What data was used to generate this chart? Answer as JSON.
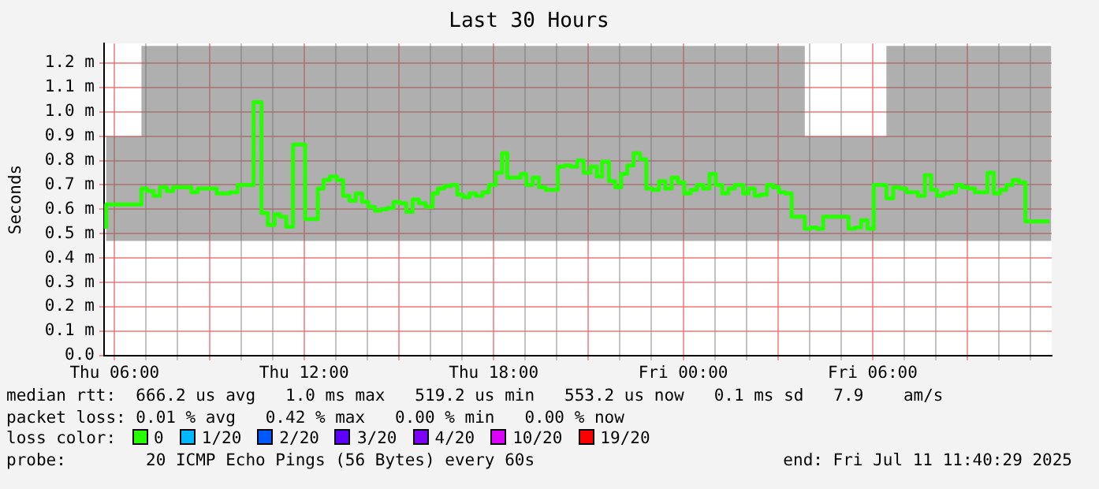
{
  "chart_data": {
    "type": "step",
    "title": "Last 30 Hours",
    "ylabel": "Seconds",
    "legend_title": "loss color:",
    "legend": "bottom",
    "grid": true,
    "marker": "none",
    "line_style": "solid",
    "x": [
      "2025-07-10T05:44",
      "2025-07-10T06:51",
      "2025-07-10T07:01",
      "2025-07-10T07:14",
      "2025-07-10T07:26",
      "2025-07-10T07:39",
      "2025-07-10T07:51",
      "2025-07-10T08:26",
      "2025-07-10T08:38",
      "2025-07-10T09:14",
      "2025-07-10T09:39",
      "2025-07-10T09:54",
      "2025-07-10T10:24",
      "2025-07-10T10:39",
      "2025-07-10T10:51",
      "2025-07-10T11:04",
      "2025-07-10T11:14",
      "2025-07-10T11:26",
      "2025-07-10T11:39",
      "2025-07-10T12:02",
      "2025-07-10T12:26",
      "2025-07-10T12:37",
      "2025-07-10T12:49",
      "2025-07-10T13:02",
      "2025-07-10T13:14",
      "2025-07-10T13:26",
      "2025-07-10T13:38",
      "2025-07-10T13:50",
      "2025-07-10T14:02",
      "2025-07-10T14:14",
      "2025-07-10T14:26",
      "2025-07-10T14:38",
      "2025-07-10T14:50",
      "2025-07-10T15:02",
      "2025-07-10T15:14",
      "2025-07-10T15:26",
      "2025-07-10T15:38",
      "2025-07-10T15:51",
      "2025-07-10T16:04",
      "2025-07-10T16:14",
      "2025-07-10T16:26",
      "2025-07-10T16:39",
      "2025-07-10T16:51",
      "2025-07-10T17:02",
      "2025-07-10T17:14",
      "2025-07-10T17:26",
      "2025-07-10T17:39",
      "2025-07-10T17:51",
      "2025-07-10T18:04",
      "2025-07-10T18:16",
      "2025-07-10T18:26",
      "2025-07-10T18:51",
      "2025-07-10T19:02",
      "2025-07-10T19:14",
      "2025-07-10T19:26",
      "2025-07-10T19:39",
      "2025-07-10T20:02",
      "2025-07-10T20:14",
      "2025-07-10T20:26",
      "2025-07-10T20:39",
      "2025-07-10T20:51",
      "2025-07-10T21:04",
      "2025-07-10T21:16",
      "2025-07-10T21:26",
      "2025-07-10T21:39",
      "2025-07-10T21:51",
      "2025-07-10T22:02",
      "2025-07-10T22:14",
      "2025-07-10T22:26",
      "2025-07-10T22:38",
      "2025-07-10T22:50",
      "2025-07-10T23:02",
      "2025-07-10T23:14",
      "2025-07-10T23:26",
      "2025-07-10T23:38",
      "2025-07-10T23:50",
      "2025-07-11T00:02",
      "2025-07-11T00:14",
      "2025-07-11T00:26",
      "2025-07-11T00:38",
      "2025-07-11T00:50",
      "2025-07-11T01:02",
      "2025-07-11T01:14",
      "2025-07-11T01:26",
      "2025-07-11T01:38",
      "2025-07-11T01:54",
      "2025-07-11T02:04",
      "2025-07-11T02:16",
      "2025-07-11T02:26",
      "2025-07-11T02:39",
      "2025-07-11T02:51",
      "2025-07-11T03:02",
      "2025-07-11T03:14",
      "2025-07-11T03:26",
      "2025-07-11T03:51",
      "2025-07-11T04:02",
      "2025-07-11T04:14",
      "2025-07-11T04:26",
      "2025-07-11T05:14",
      "2025-07-11T05:26",
      "2025-07-11T05:38",
      "2025-07-11T05:50",
      "2025-07-11T06:02",
      "2025-07-11T06:26",
      "2025-07-11T06:39",
      "2025-07-11T06:51",
      "2025-07-11T07:04",
      "2025-07-11T07:26",
      "2025-07-11T07:39",
      "2025-07-11T07:51",
      "2025-07-11T08:02",
      "2025-07-11T08:14",
      "2025-07-11T08:26",
      "2025-07-11T08:38",
      "2025-07-11T08:50",
      "2025-07-11T09:02",
      "2025-07-11T09:14",
      "2025-07-11T09:38",
      "2025-07-11T09:50",
      "2025-07-11T10:02",
      "2025-07-11T10:14",
      "2025-07-11T10:26",
      "2025-07-11T10:38",
      "2025-07-11T10:50",
      "2025-07-11T11:02",
      "2025-07-11T11:36"
    ],
    "series": [
      {
        "name": "0",
        "color": "#26ff00",
        "values": [
          0.52,
          0.62,
          0.685,
          0.675,
          0.655,
          0.69,
          0.675,
          0.69,
          0.67,
          0.685,
          0.665,
          0.67,
          0.7,
          1.04,
          0.585,
          0.536,
          0.58,
          0.57,
          0.528,
          0.866,
          0.56,
          0.685,
          0.72,
          0.735,
          0.72,
          0.655,
          0.635,
          0.665,
          0.63,
          0.61,
          0.595,
          0.6,
          0.605,
          0.63,
          0.625,
          0.59,
          0.64,
          0.625,
          0.61,
          0.665,
          0.685,
          0.695,
          0.7,
          0.66,
          0.65,
          0.665,
          0.655,
          0.67,
          0.7,
          0.75,
          0.83,
          0.73,
          0.745,
          0.7,
          0.73,
          0.69,
          0.68,
          0.775,
          0.78,
          0.775,
          0.8,
          0.75,
          0.775,
          0.735,
          0.795,
          0.715,
          0.69,
          0.745,
          0.78,
          0.83,
          0.805,
          0.685,
          0.68,
          0.715,
          0.685,
          0.73,
          0.71,
          0.665,
          0.68,
          0.7,
          0.685,
          0.745,
          0.7,
          0.665,
          0.685,
          0.7,
          0.665,
          0.685,
          0.655,
          0.66,
          0.7,
          0.69,
          0.67,
          0.665,
          0.57,
          0.52,
          0.525,
          0.52,
          0.57,
          0.52,
          0.525,
          0.555,
          0.52,
          0.7,
          0.645,
          0.69,
          0.685,
          0.67,
          0.655,
          0.74,
          0.68,
          0.655,
          0.665,
          0.67,
          0.7,
          0.69,
          0.685,
          0.67,
          0.75,
          0.665,
          0.68,
          0.7,
          0.72,
          0.71,
          0.55,
          0.55
        ],
        "lower": [
          0.47,
          0.47,
          0.47,
          0.47,
          0.47,
          0.47,
          0.47,
          0.47,
          0.47,
          0.47,
          0.47,
          0.47,
          0.47,
          0.47,
          0.47,
          0.47,
          0.47,
          0.47,
          0.47,
          0.47,
          0.47,
          0.47,
          0.47,
          0.47,
          0.47,
          0.47,
          0.47,
          0.47,
          0.47,
          0.47,
          0.47,
          0.47,
          0.47,
          0.47,
          0.47,
          0.47,
          0.47,
          0.47,
          0.47,
          0.47,
          0.47,
          0.47,
          0.47,
          0.47,
          0.47,
          0.47,
          0.47,
          0.47,
          0.47,
          0.47,
          0.47,
          0.47,
          0.47,
          0.47,
          0.47,
          0.47,
          0.47,
          0.47,
          0.47,
          0.47,
          0.47,
          0.47,
          0.47,
          0.47,
          0.47,
          0.47,
          0.47,
          0.47,
          0.47,
          0.47,
          0.47,
          0.47,
          0.47,
          0.47,
          0.47,
          0.47,
          0.47,
          0.47,
          0.47,
          0.47,
          0.47,
          0.47,
          0.47,
          0.47,
          0.47,
          0.47,
          0.47,
          0.47,
          0.47,
          0.47,
          0.47,
          0.47,
          0.47,
          0.47,
          0.47,
          0.47,
          0.47,
          0.47,
          0.47,
          0.47,
          0.47,
          0.47,
          0.47,
          0.47,
          0.47,
          0.47,
          0.47,
          0.47,
          0.47,
          0.47,
          0.47,
          0.47,
          0.47,
          0.47,
          0.47,
          0.47,
          0.47,
          0.47,
          0.47,
          0.47,
          0.47,
          0.47,
          0.47,
          0.47,
          0.47,
          0.47
        ],
        "upper": [
          0.9,
          1.27,
          1.27,
          1.27,
          1.27,
          1.27,
          1.27,
          1.27,
          1.27,
          1.27,
          1.27,
          1.27,
          1.27,
          1.27,
          1.27,
          1.27,
          1.27,
          1.27,
          1.27,
          1.27,
          1.27,
          1.27,
          1.27,
          1.27,
          1.27,
          1.27,
          1.27,
          1.27,
          1.27,
          1.27,
          1.27,
          1.27,
          1.27,
          1.27,
          1.27,
          1.27,
          1.27,
          1.27,
          1.27,
          1.27,
          1.27,
          1.27,
          1.27,
          1.27,
          1.27,
          1.27,
          1.27,
          1.27,
          1.27,
          1.27,
          1.27,
          1.27,
          1.27,
          1.27,
          1.27,
          1.27,
          1.27,
          1.27,
          1.27,
          1.27,
          1.27,
          1.27,
          1.27,
          1.27,
          1.27,
          1.27,
          1.27,
          1.27,
          1.27,
          1.27,
          1.27,
          1.27,
          1.27,
          1.27,
          1.27,
          1.27,
          1.27,
          1.27,
          1.27,
          1.27,
          1.27,
          1.27,
          1.27,
          1.27,
          1.27,
          1.27,
          1.27,
          1.27,
          1.27,
          1.27,
          1.27,
          1.27,
          1.27,
          1.27,
          0.9,
          0.9,
          0.9,
          0.9,
          0.9,
          0.9,
          0.9,
          0.9,
          0.9,
          1.27,
          1.27,
          1.27,
          1.27,
          1.27,
          1.27,
          1.27,
          1.27,
          1.27,
          1.27,
          1.27,
          1.27,
          1.27,
          1.27,
          1.27,
          1.27,
          1.27,
          1.27,
          1.27,
          1.27,
          1.27,
          1.27,
          1.27
        ]
      },
      {
        "name": "1/20",
        "color": "#00b8ff",
        "values": [
          null,
          null,
          null,
          null,
          null,
          null,
          null,
          null,
          null,
          null,
          null,
          null,
          null,
          null,
          null,
          null,
          null,
          null,
          null,
          null,
          null,
          null,
          null,
          null,
          null,
          null,
          null,
          null,
          null,
          null,
          null,
          null,
          null,
          null,
          null,
          null,
          null,
          null,
          null,
          null,
          null,
          null,
          null,
          null,
          null,
          null,
          null,
          null,
          null,
          null,
          null,
          null,
          null,
          null,
          null,
          null,
          null,
          null,
          null,
          null,
          null,
          null,
          null,
          null,
          null,
          null,
          null,
          null,
          null,
          null,
          null,
          null,
          null,
          null,
          null,
          null,
          null,
          null,
          null,
          null,
          null,
          null,
          null,
          null,
          null,
          null,
          null,
          null,
          null,
          null,
          null,
          null,
          null,
          null,
          null,
          null,
          null,
          null,
          null,
          null,
          null,
          null,
          null,
          null,
          null,
          null,
          null,
          null,
          null,
          null,
          null,
          null,
          null,
          null,
          null,
          null,
          null,
          null,
          null,
          null,
          null,
          null,
          null,
          null,
          null,
          null
        ]
      },
      {
        "name": "2/20",
        "color": "#0059ff",
        "values": [
          null,
          null,
          null,
          null,
          null,
          null,
          null,
          null,
          null,
          null,
          null,
          null,
          null,
          null,
          null,
          null,
          null,
          null,
          null,
          null,
          null,
          null,
          null,
          null,
          null,
          null,
          null,
          null,
          null,
          null,
          null,
          null,
          null,
          null,
          null,
          null,
          null,
          null,
          null,
          null,
          null,
          null,
          null,
          null,
          null,
          null,
          null,
          null,
          null,
          null,
          null,
          null,
          null,
          null,
          null,
          null,
          null,
          null,
          null,
          null,
          null,
          null,
          null,
          null,
          null,
          null,
          null,
          null,
          null,
          null,
          null,
          null,
          null,
          null,
          null,
          null,
          null,
          null,
          null,
          null,
          null,
          null,
          null,
          null,
          null,
          null,
          null,
          null,
          null,
          null,
          null,
          null,
          null,
          null,
          null,
          null,
          null,
          null,
          null,
          null,
          null,
          null,
          null,
          null,
          null,
          null,
          null,
          null,
          null,
          null,
          null,
          null,
          null,
          null,
          null,
          null,
          null,
          null,
          null,
          null,
          null,
          null,
          null,
          null,
          null,
          null
        ]
      },
      {
        "name": "3/20",
        "color": "#5e00ff",
        "values": [
          null,
          null,
          null,
          null,
          null,
          null,
          null,
          null,
          null,
          null,
          null,
          null,
          null,
          null,
          null,
          null,
          null,
          null,
          null,
          null,
          null,
          null,
          null,
          null,
          null,
          null,
          null,
          null,
          null,
          null,
          null,
          null,
          null,
          null,
          null,
          null,
          null,
          null,
          null,
          null,
          null,
          null,
          null,
          null,
          null,
          null,
          null,
          null,
          null,
          null,
          null,
          null,
          null,
          null,
          null,
          null,
          null,
          null,
          null,
          null,
          null,
          null,
          null,
          null,
          null,
          null,
          null,
          null,
          null,
          null,
          null,
          null,
          null,
          null,
          null,
          null,
          null,
          null,
          null,
          null,
          null,
          null,
          null,
          null,
          null,
          null,
          null,
          null,
          null,
          null,
          null,
          null,
          null,
          null,
          null,
          null,
          null,
          null,
          null,
          null,
          null,
          null,
          null,
          null,
          null,
          null,
          null,
          null,
          null,
          null,
          null,
          null,
          null,
          null,
          null,
          null,
          null,
          null,
          null,
          null,
          null,
          null,
          null,
          null,
          null,
          null
        ]
      },
      {
        "name": "4/20",
        "color": "#7e00ff",
        "values": [
          null,
          null,
          null,
          null,
          null,
          null,
          null,
          null,
          null,
          null,
          null,
          null,
          null,
          null,
          null,
          null,
          null,
          null,
          null,
          null,
          null,
          null,
          null,
          null,
          null,
          null,
          null,
          null,
          null,
          null,
          null,
          null,
          null,
          null,
          null,
          null,
          null,
          null,
          null,
          null,
          null,
          null,
          null,
          null,
          null,
          null,
          null,
          null,
          null,
          null,
          null,
          null,
          null,
          null,
          null,
          null,
          null,
          null,
          null,
          null,
          null,
          null,
          null,
          null,
          null,
          null,
          null,
          null,
          null,
          null,
          null,
          null,
          null,
          null,
          null,
          null,
          null,
          null,
          null,
          null,
          null,
          null,
          null,
          null,
          null,
          null,
          null,
          null,
          null,
          null,
          null,
          null,
          null,
          null,
          null,
          null,
          null,
          null,
          null,
          null,
          null,
          null,
          null,
          null,
          null,
          null,
          null,
          null,
          null,
          null,
          null,
          null,
          null,
          null,
          null,
          null,
          null,
          null,
          null,
          null,
          null,
          null,
          null,
          null,
          null,
          null
        ]
      },
      {
        "name": "10/20",
        "color": "#dd00ff",
        "values": [
          null,
          null,
          null,
          null,
          null,
          null,
          null,
          null,
          null,
          null,
          null,
          null,
          null,
          null,
          null,
          null,
          null,
          null,
          null,
          null,
          null,
          null,
          null,
          null,
          null,
          null,
          null,
          null,
          null,
          null,
          null,
          null,
          null,
          null,
          null,
          null,
          null,
          null,
          null,
          null,
          null,
          null,
          null,
          null,
          null,
          null,
          null,
          null,
          null,
          null,
          null,
          null,
          null,
          null,
          null,
          null,
          null,
          null,
          null,
          null,
          null,
          null,
          null,
          null,
          null,
          null,
          null,
          null,
          null,
          null,
          null,
          null,
          null,
          null,
          null,
          null,
          null,
          null,
          null,
          null,
          null,
          null,
          null,
          null,
          null,
          null,
          null,
          null,
          null,
          null,
          null,
          null,
          null,
          null,
          null,
          null,
          null,
          null,
          null,
          null,
          null,
          null,
          null,
          null,
          null,
          null,
          null,
          null,
          null,
          null,
          null,
          null,
          null,
          null,
          null,
          null,
          null,
          null,
          null,
          null,
          null,
          null,
          null,
          null,
          null,
          null
        ]
      },
      {
        "name": "19/20",
        "color": "#ff0000",
        "values": [
          null,
          null,
          null,
          null,
          null,
          null,
          null,
          null,
          null,
          null,
          null,
          null,
          null,
          null,
          null,
          null,
          null,
          null,
          null,
          null,
          null,
          null,
          null,
          null,
          null,
          null,
          null,
          null,
          null,
          null,
          null,
          null,
          null,
          null,
          null,
          null,
          null,
          null,
          null,
          null,
          null,
          null,
          null,
          null,
          null,
          null,
          null,
          null,
          null,
          null,
          null,
          null,
          null,
          null,
          null,
          null,
          null,
          null,
          null,
          null,
          null,
          null,
          null,
          null,
          null,
          null,
          null,
          null,
          null,
          null,
          null,
          null,
          null,
          null,
          null,
          null,
          null,
          null,
          null,
          null,
          null,
          null,
          null,
          null,
          null,
          null,
          null,
          null,
          null,
          null,
          null,
          null,
          null,
          null,
          null,
          null,
          null,
          null,
          null,
          null,
          null,
          null,
          null,
          null,
          null,
          null,
          null,
          null,
          null,
          null,
          null,
          null,
          null,
          null,
          null,
          null,
          null,
          null,
          null,
          null,
          null,
          null,
          null,
          null,
          null,
          null
        ]
      }
    ],
    "xlim": [
      "2025-07-10T05:40",
      "2025-07-11T11:40"
    ],
    "xticks": [
      {
        "value": "2025-07-10T06:00",
        "label": "Thu 06:00"
      },
      {
        "value": "2025-07-10T07:00",
        "label": null
      },
      {
        "value": "2025-07-10T08:00",
        "label": null
      },
      {
        "value": "2025-07-10T09:00",
        "label": null
      },
      {
        "value": "2025-07-10T10:00",
        "label": null
      },
      {
        "value": "2025-07-10T11:00",
        "label": null
      },
      {
        "value": "2025-07-10T12:00",
        "label": "Thu 12:00"
      },
      {
        "value": "2025-07-10T13:00",
        "label": null
      },
      {
        "value": "2025-07-10T14:00",
        "label": null
      },
      {
        "value": "2025-07-10T15:00",
        "label": null
      },
      {
        "value": "2025-07-10T16:00",
        "label": null
      },
      {
        "value": "2025-07-10T17:00",
        "label": null
      },
      {
        "value": "2025-07-10T18:00",
        "label": "Thu 18:00"
      },
      {
        "value": "2025-07-10T19:00",
        "label": null
      },
      {
        "value": "2025-07-10T20:00",
        "label": null
      },
      {
        "value": "2025-07-10T21:00",
        "label": null
      },
      {
        "value": "2025-07-10T22:00",
        "label": null
      },
      {
        "value": "2025-07-10T23:00",
        "label": null
      },
      {
        "value": "2025-07-11T00:00",
        "label": "Fri 00:00"
      },
      {
        "value": "2025-07-11T01:00",
        "label": null
      },
      {
        "value": "2025-07-11T02:00",
        "label": null
      },
      {
        "value": "2025-07-11T03:00",
        "label": null
      },
      {
        "value": "2025-07-11T04:00",
        "label": null
      },
      {
        "value": "2025-07-11T05:00",
        "label": null
      },
      {
        "value": "2025-07-11T06:00",
        "label": "Fri 06:00"
      },
      {
        "value": "2025-07-11T07:00",
        "label": null
      },
      {
        "value": "2025-07-11T08:00",
        "label": null
      },
      {
        "value": "2025-07-11T09:00",
        "label": null
      },
      {
        "value": "2025-07-11T10:00",
        "label": null
      },
      {
        "value": "2025-07-11T11:00",
        "label": null
      }
    ],
    "ylim": [
      0,
      1.28
    ],
    "yticks": [
      {
        "value": 0,
        "label": "0.0"
      },
      {
        "value": 0.1,
        "label": "0.1 m"
      },
      {
        "value": 0.2,
        "label": "0.2 m"
      },
      {
        "value": 0.3,
        "label": "0.3 m"
      },
      {
        "value": 0.4,
        "label": "0.4 m"
      },
      {
        "value": 0.5,
        "label": "0.5 m"
      },
      {
        "value": 0.6,
        "label": "0.6 m"
      },
      {
        "value": 0.7,
        "label": "0.7 m"
      },
      {
        "value": 0.8,
        "label": "0.8 m"
      },
      {
        "value": 0.9,
        "label": "0.9 m"
      },
      {
        "value": 1.0,
        "label": "1.0 m"
      },
      {
        "value": 1.1,
        "label": "1.1 m"
      },
      {
        "value": 1.2,
        "label": "1.2 m"
      }
    ],
    "annotations": [
      "median rtt:  666.2 us avg   1.0 ms max   519.2 us min   553.2 us now   0.1 ms sd   7.9    am/s",
      "packet loss: 0.01 % avg   0.42 % max   0.00 % min   0.00 % now",
      "probe:        20 ICMP Echo Pings (56 Bytes) every 60s",
      "end: Fri Jul 11 11:40:29 2025"
    ]
  }
}
